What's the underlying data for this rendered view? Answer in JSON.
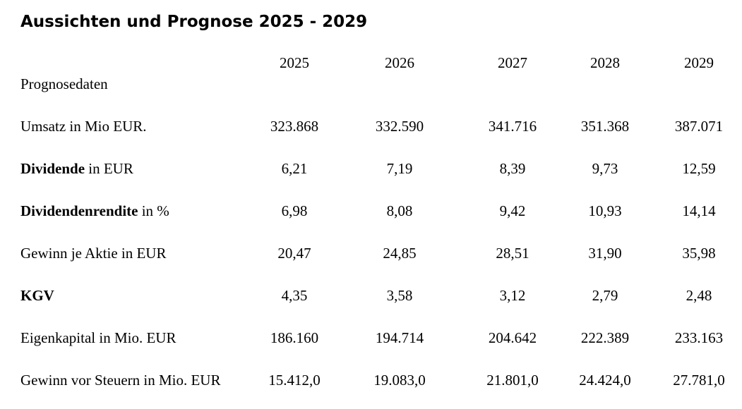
{
  "title": "Aussichten und Prognose 2025 - 2029",
  "years": [
    "2025",
    "2026",
    "2027",
    "2028",
    "2029"
  ],
  "section_label": "Prognosedaten",
  "rows": [
    {
      "label_bold": "",
      "label_rest": "Umsatz in Mio EUR.",
      "values": [
        "323.868",
        "332.590",
        "341.716",
        "351.368",
        "387.071"
      ]
    },
    {
      "label_bold": "Dividende",
      "label_rest": " in EUR",
      "values": [
        "6,21",
        "7,19",
        "8,39",
        "9,73",
        "12,59"
      ]
    },
    {
      "label_bold": "Dividendenrendite",
      "label_rest": " in %",
      "values": [
        "6,98",
        "8,08",
        "9,42",
        "10,93",
        "14,14"
      ]
    },
    {
      "label_bold": "",
      "label_rest": "Gewinn je Aktie in EUR",
      "values": [
        "20,47",
        "24,85",
        "28,51",
        "31,90",
        "35,98"
      ]
    },
    {
      "label_bold": "KGV",
      "label_rest": "",
      "values": [
        "4,35",
        "3,58",
        "3,12",
        "2,79",
        "2,48"
      ]
    },
    {
      "label_bold": "",
      "label_rest": "Eigenkapital in Mio. EUR",
      "values": [
        "186.160",
        "194.714",
        "204.642",
        "222.389",
        "233.163"
      ]
    },
    {
      "label_bold": "",
      "label_rest": "Gewinn vor Steuern in Mio. EUR",
      "values": [
        "15.412,0",
        "19.083,0",
        "21.801,0",
        "24.424,0",
        "27.781,0"
      ]
    }
  ]
}
